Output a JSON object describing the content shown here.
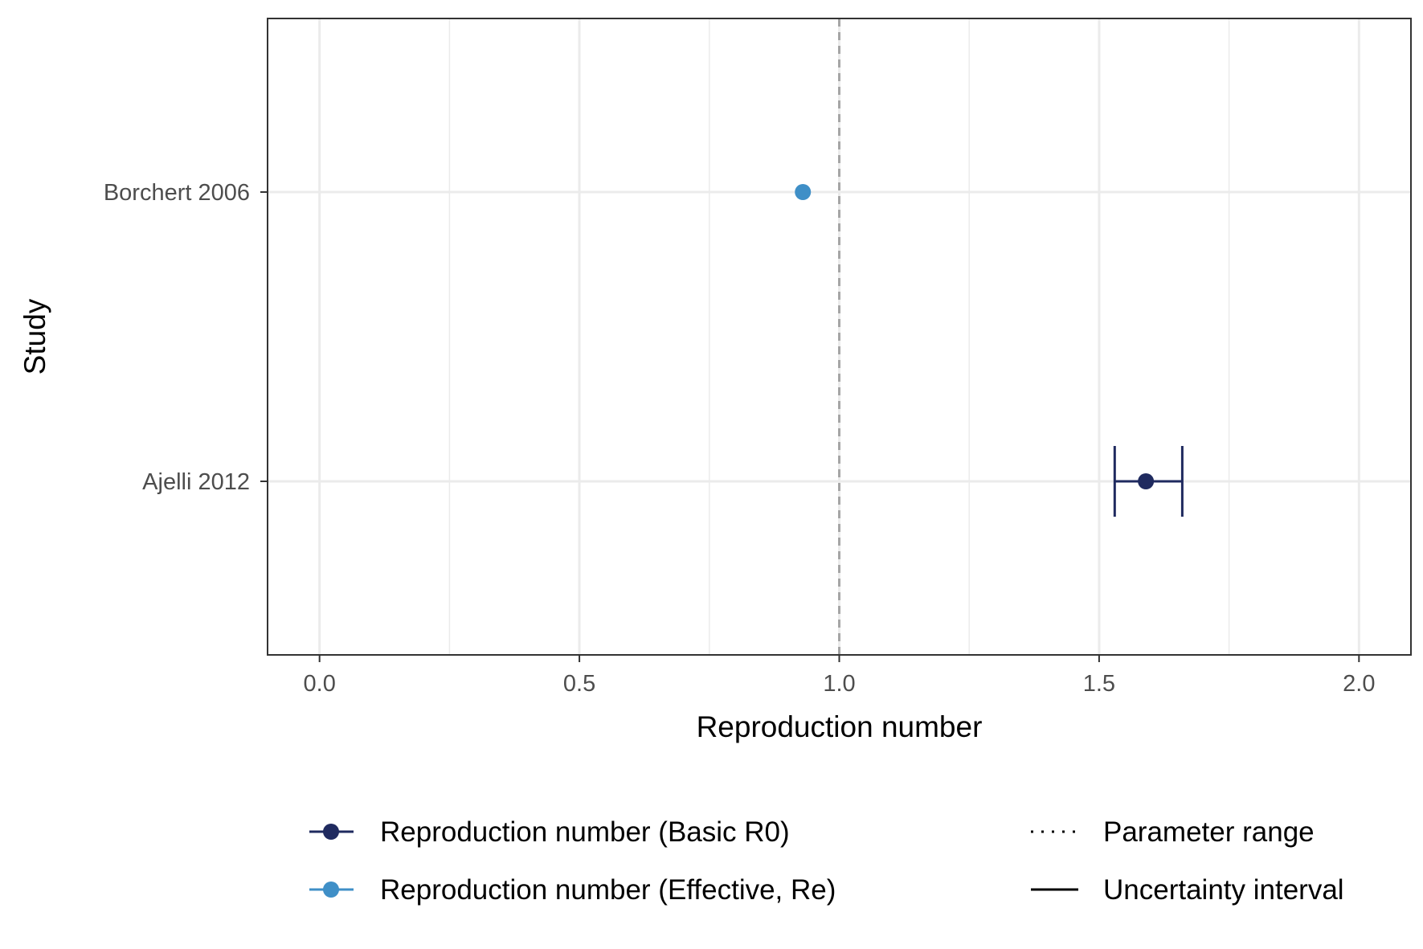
{
  "chart_data": {
    "type": "scatter",
    "xlabel": "Reproduction number",
    "ylabel": "Study",
    "xlim": [
      -0.1,
      2.1
    ],
    "x_ticks": [
      0.0,
      0.5,
      1.0,
      1.5,
      2.0
    ],
    "x_tick_labels": [
      "0.0",
      "0.5",
      "1.0",
      "1.5",
      "2.0"
    ],
    "grid": true,
    "reference_line": {
      "x": 1.0,
      "style": "dashed",
      "color": "#a6a6a6"
    },
    "categories": [
      "Borchert 2006",
      "Ajelli 2012"
    ],
    "series": [
      {
        "name": "Reproduction number (Basic R0)",
        "color": "#1f2a5f",
        "points": [
          {
            "study": "Ajelli 2012",
            "value": 1.59,
            "lower": 1.53,
            "upper": 1.66,
            "interval": "Uncertainty interval"
          }
        ]
      },
      {
        "name": "Reproduction number (Effective, Re)",
        "color": "#3f8fc7",
        "points": [
          {
            "study": "Borchert 2006",
            "value": 0.93
          }
        ]
      }
    ],
    "legend": {
      "placement": "bottom",
      "series_entries": [
        "Reproduction number (Basic R0)",
        "Reproduction number (Effective, Re)"
      ],
      "linetype_entries": [
        {
          "label": "Parameter range",
          "style": "dotted"
        },
        {
          "label": "Uncertainty interval",
          "style": "solid"
        }
      ]
    }
  }
}
